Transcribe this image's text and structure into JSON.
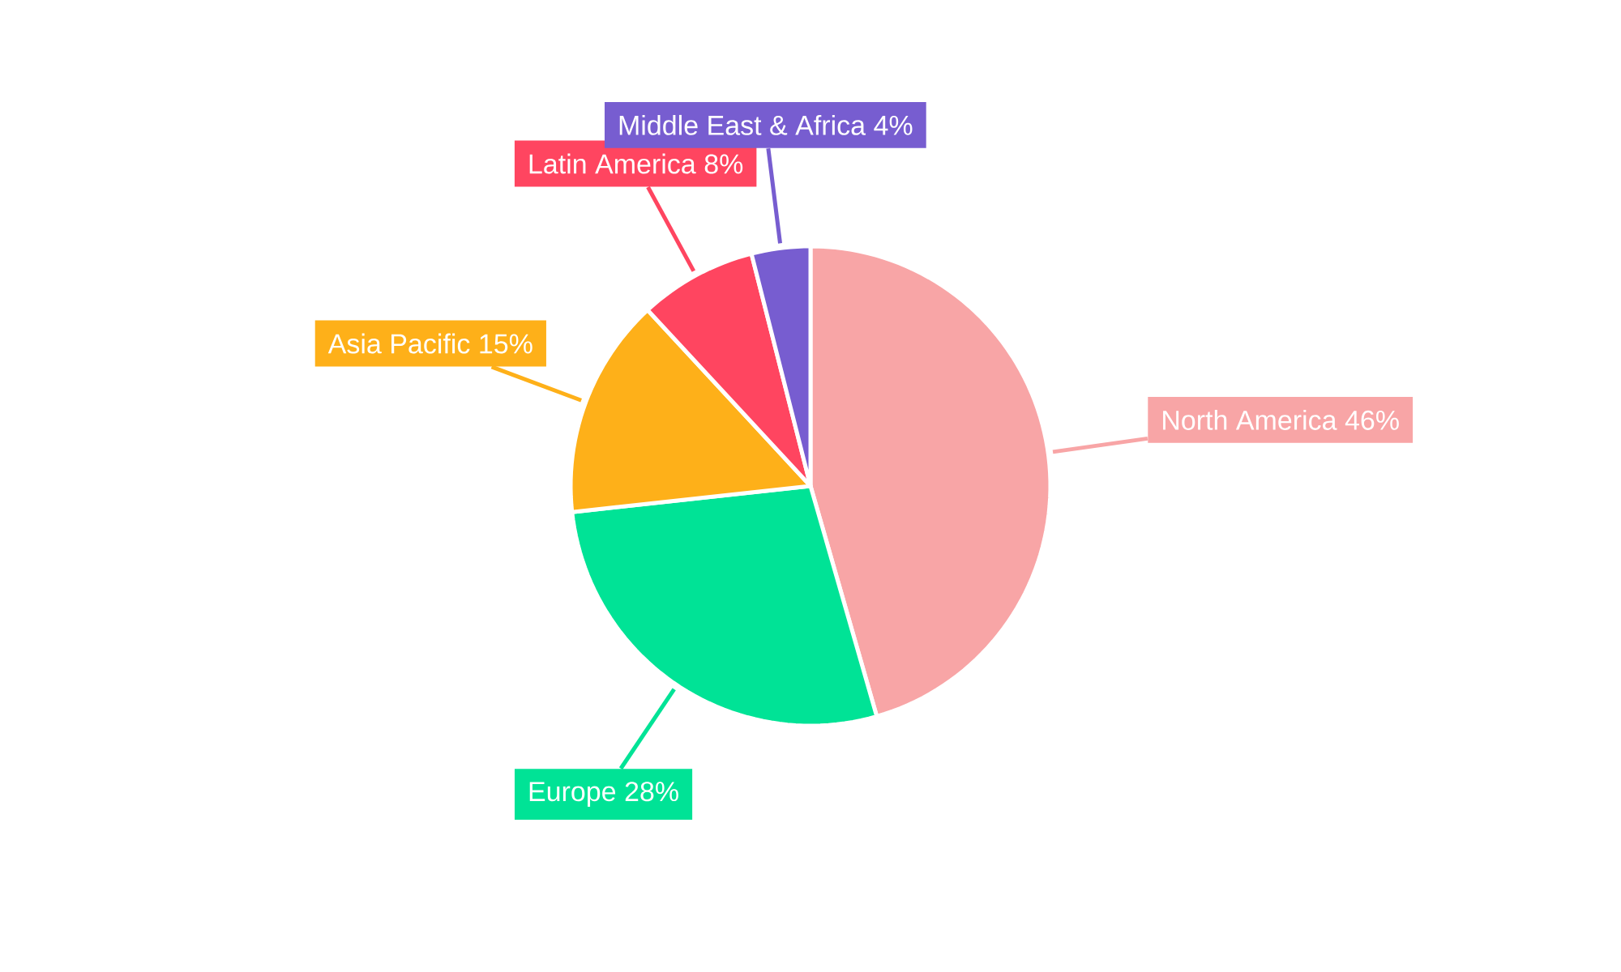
{
  "chart_data": {
    "type": "pie",
    "categories": [
      "North America",
      "Europe",
      "Asia Pacific",
      "Latin America",
      "Middle East & Africa"
    ],
    "values": [
      46,
      28,
      15,
      8,
      4
    ],
    "value_labels": [
      "46%",
      "28%",
      "15%",
      "8%",
      "4%"
    ],
    "colors": [
      "#f8a5a6",
      "#00e396",
      "#feb019",
      "#ff4560",
      "#775dd0"
    ]
  }
}
